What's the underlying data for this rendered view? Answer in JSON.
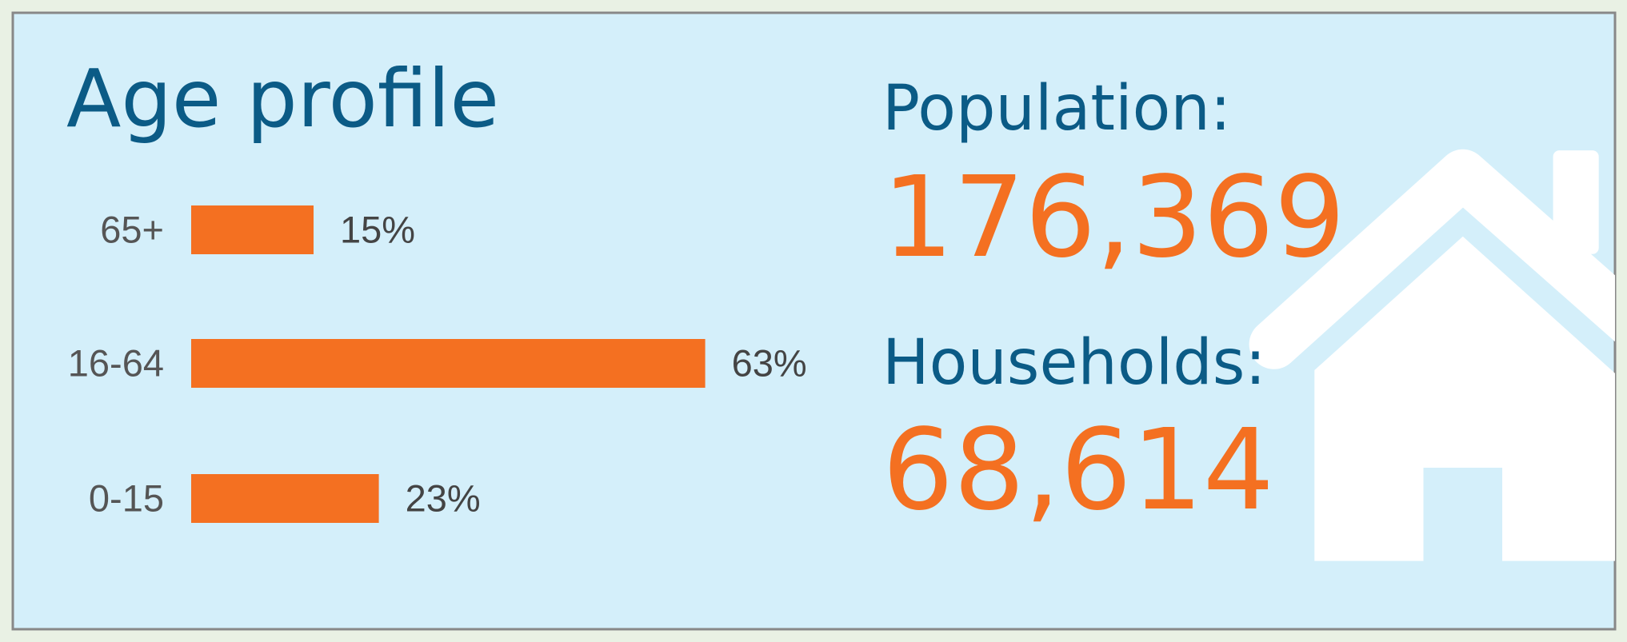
{
  "chart_data": {
    "type": "bar",
    "orientation": "horizontal",
    "title": "Age profile",
    "categories": [
      "65+",
      "16-64",
      "0-15"
    ],
    "values": [
      15,
      63,
      23
    ],
    "value_labels": [
      "15%",
      "63%",
      "23%"
    ],
    "color": "#f47021"
  },
  "stats": [
    {
      "label": "Population:",
      "value": "176,369"
    },
    {
      "label": "Households:",
      "value": "68,614"
    }
  ]
}
